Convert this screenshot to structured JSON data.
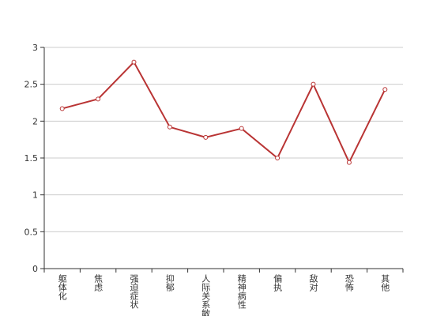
{
  "chart_data": {
    "type": "line",
    "categories": [
      "躯体化",
      "焦虑",
      "强迫症状",
      "抑郁",
      "人际关系敏感",
      "精神病性",
      "偏执",
      "敌对",
      "恐怖",
      "其他"
    ],
    "values": [
      2.17,
      2.3,
      2.8,
      1.92,
      1.78,
      1.9,
      1.5,
      2.5,
      1.44,
      2.43
    ],
    "color": "#b93434",
    "ylim": [
      0,
      3
    ],
    "yticks": [
      0,
      0.5,
      1,
      1.5,
      2,
      2.5,
      3
    ],
    "grid": true
  }
}
